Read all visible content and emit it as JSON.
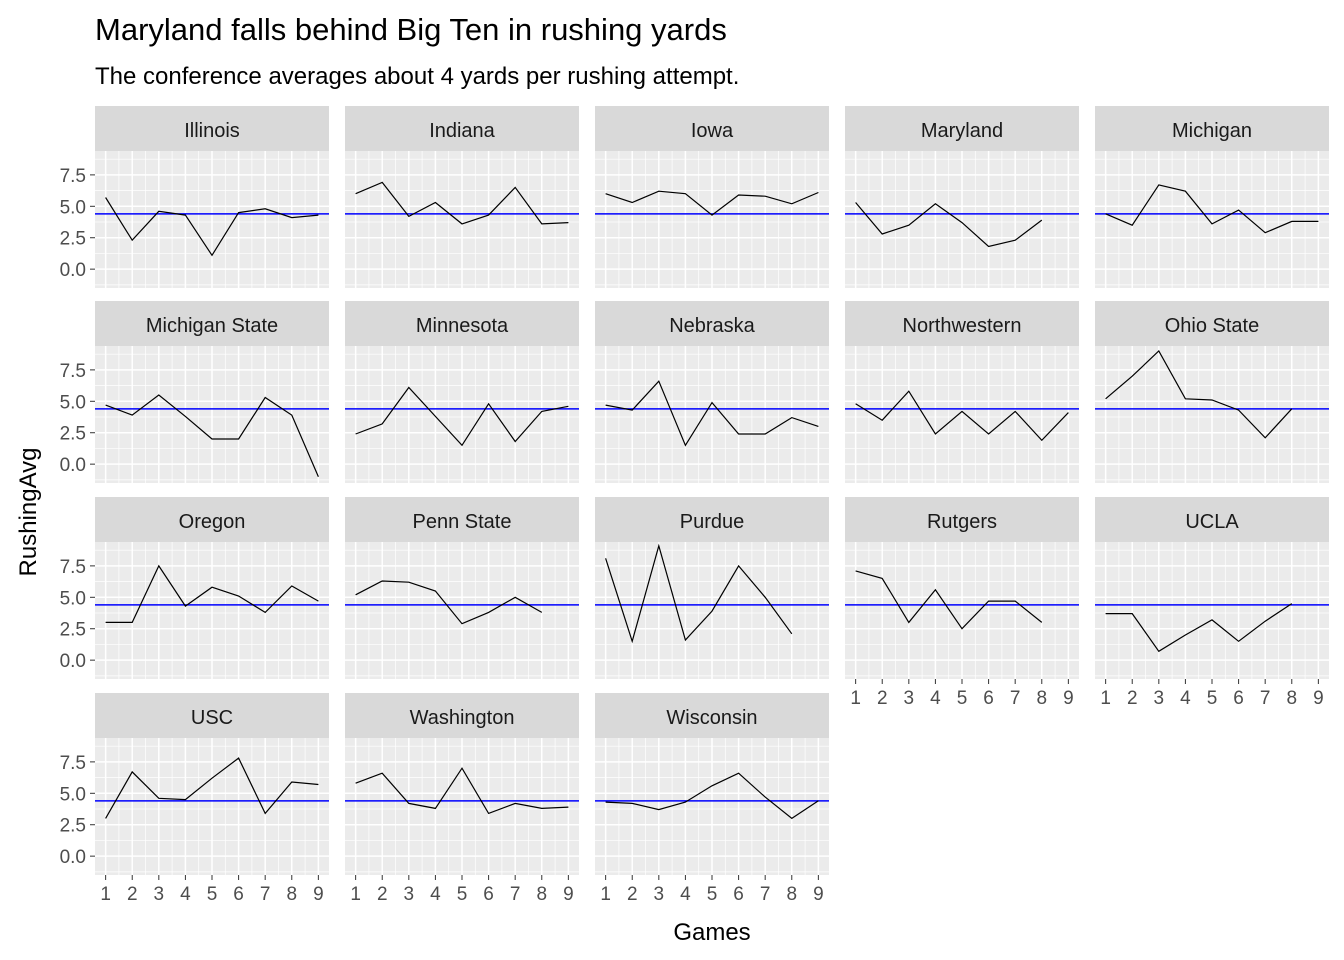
{
  "chart_data": {
    "type": "line",
    "title": "Maryland falls behind Big Ten in rushing yards",
    "subtitle": "The conference averages about 4 yards per rushing attempt.",
    "xlabel": "Games",
    "ylabel": "RushingAvg",
    "x_ticks": [
      1,
      2,
      3,
      4,
      5,
      6,
      7,
      8,
      9
    ],
    "y_ticks": [
      0,
      2.5,
      5,
      7.5
    ],
    "y_tick_labels": [
      "0.0",
      "2.5",
      "5.0",
      "7.5"
    ],
    "xlim": [
      0.6,
      9.4
    ],
    "ylim": [
      -1.5,
      9.4
    ],
    "reference_line": {
      "value": 4.4,
      "color": "#0000ff"
    },
    "line_color": "#000000",
    "panel_background": "#ebebeb",
    "strip_background": "#d9d9d9",
    "grid": true,
    "panels": [
      {
        "team": "Illinois",
        "x": [
          1,
          2,
          3,
          4,
          5,
          6,
          7,
          8,
          9
        ],
        "y": [
          5.7,
          2.3,
          4.6,
          4.3,
          1.1,
          4.5,
          4.8,
          4.1,
          4.3
        ]
      },
      {
        "team": "Indiana",
        "x": [
          1,
          2,
          3,
          4,
          5,
          6,
          7,
          8,
          9
        ],
        "y": [
          6.0,
          6.9,
          4.2,
          5.3,
          3.6,
          4.3,
          6.5,
          3.6,
          3.7
        ]
      },
      {
        "team": "Iowa",
        "x": [
          1,
          2,
          3,
          4,
          5,
          6,
          7,
          8,
          9
        ],
        "y": [
          6.0,
          5.3,
          6.2,
          6.0,
          4.3,
          5.9,
          5.8,
          5.2,
          6.1
        ]
      },
      {
        "team": "Maryland",
        "x": [
          1,
          2,
          3,
          4,
          5,
          6,
          7,
          8
        ],
        "y": [
          5.3,
          2.8,
          3.5,
          5.2,
          3.7,
          1.8,
          2.3,
          3.9
        ]
      },
      {
        "team": "Michigan",
        "x": [
          1,
          2,
          3,
          4,
          5,
          6,
          7,
          8,
          9
        ],
        "y": [
          4.4,
          3.5,
          6.7,
          6.2,
          3.6,
          4.7,
          2.9,
          3.8,
          3.8
        ]
      },
      {
        "team": "Michigan State",
        "x": [
          1,
          2,
          3,
          4,
          5,
          6,
          7,
          8,
          9
        ],
        "y": [
          4.7,
          3.9,
          5.5,
          3.8,
          2.0,
          2.0,
          5.3,
          3.9,
          -1.0
        ]
      },
      {
        "team": "Minnesota",
        "x": [
          1,
          2,
          3,
          4,
          5,
          6,
          7,
          8,
          9
        ],
        "y": [
          2.4,
          3.2,
          6.1,
          3.8,
          1.5,
          4.8,
          1.8,
          4.2,
          4.6
        ]
      },
      {
        "team": "Nebraska",
        "x": [
          1,
          2,
          3,
          4,
          5,
          6,
          7,
          8,
          9
        ],
        "y": [
          4.7,
          4.3,
          6.6,
          1.5,
          4.9,
          2.4,
          2.4,
          3.7,
          3.0
        ]
      },
      {
        "team": "Northwestern",
        "x": [
          1,
          2,
          3,
          4,
          5,
          6,
          7,
          8,
          9
        ],
        "y": [
          4.8,
          3.5,
          5.8,
          2.4,
          4.2,
          2.4,
          4.2,
          1.9,
          4.1
        ]
      },
      {
        "team": "Ohio State",
        "x": [
          1,
          2,
          3,
          4,
          5,
          6,
          7,
          8
        ],
        "y": [
          5.2,
          7.0,
          9.0,
          5.2,
          5.1,
          4.3,
          2.1,
          4.4
        ]
      },
      {
        "team": "Oregon",
        "x": [
          1,
          2,
          3,
          4,
          5,
          6,
          7,
          8,
          9
        ],
        "y": [
          3.0,
          3.0,
          7.5,
          4.3,
          5.8,
          5.1,
          3.8,
          5.9,
          4.7
        ]
      },
      {
        "team": "Penn State",
        "x": [
          1,
          2,
          3,
          4,
          5,
          6,
          7,
          8
        ],
        "y": [
          5.2,
          6.3,
          6.2,
          5.5,
          2.9,
          3.8,
          5.0,
          3.8
        ]
      },
      {
        "team": "Purdue",
        "x": [
          1,
          2,
          3,
          4,
          5,
          6,
          7,
          8
        ],
        "y": [
          8.1,
          1.5,
          9.1,
          1.6,
          3.9,
          7.5,
          5.0,
          2.1
        ]
      },
      {
        "team": "Rutgers",
        "x": [
          1,
          2,
          3,
          4,
          5,
          6,
          7,
          8
        ],
        "y": [
          7.1,
          6.5,
          3.0,
          5.6,
          2.5,
          4.7,
          4.7,
          3.0
        ]
      },
      {
        "team": "UCLA",
        "x": [
          1,
          2,
          3,
          4,
          5,
          6,
          7,
          8
        ],
        "y": [
          3.7,
          3.7,
          0.7,
          2.0,
          3.2,
          1.5,
          3.1,
          4.5
        ]
      },
      {
        "team": "USC",
        "x": [
          1,
          2,
          3,
          4,
          5,
          6,
          7,
          8,
          9
        ],
        "y": [
          3.0,
          6.7,
          4.6,
          4.5,
          6.2,
          7.8,
          3.4,
          5.9,
          5.7
        ]
      },
      {
        "team": "Washington",
        "x": [
          1,
          2,
          3,
          4,
          5,
          6,
          7,
          8,
          9
        ],
        "y": [
          5.8,
          6.6,
          4.2,
          3.8,
          7.0,
          3.4,
          4.2,
          3.8,
          3.9
        ]
      },
      {
        "team": "Wisconsin",
        "x": [
          1,
          2,
          3,
          4,
          5,
          6,
          7,
          8,
          9
        ],
        "y": [
          4.3,
          4.2,
          3.7,
          4.3,
          5.6,
          6.6,
          4.7,
          3.0,
          4.4
        ]
      }
    ]
  }
}
